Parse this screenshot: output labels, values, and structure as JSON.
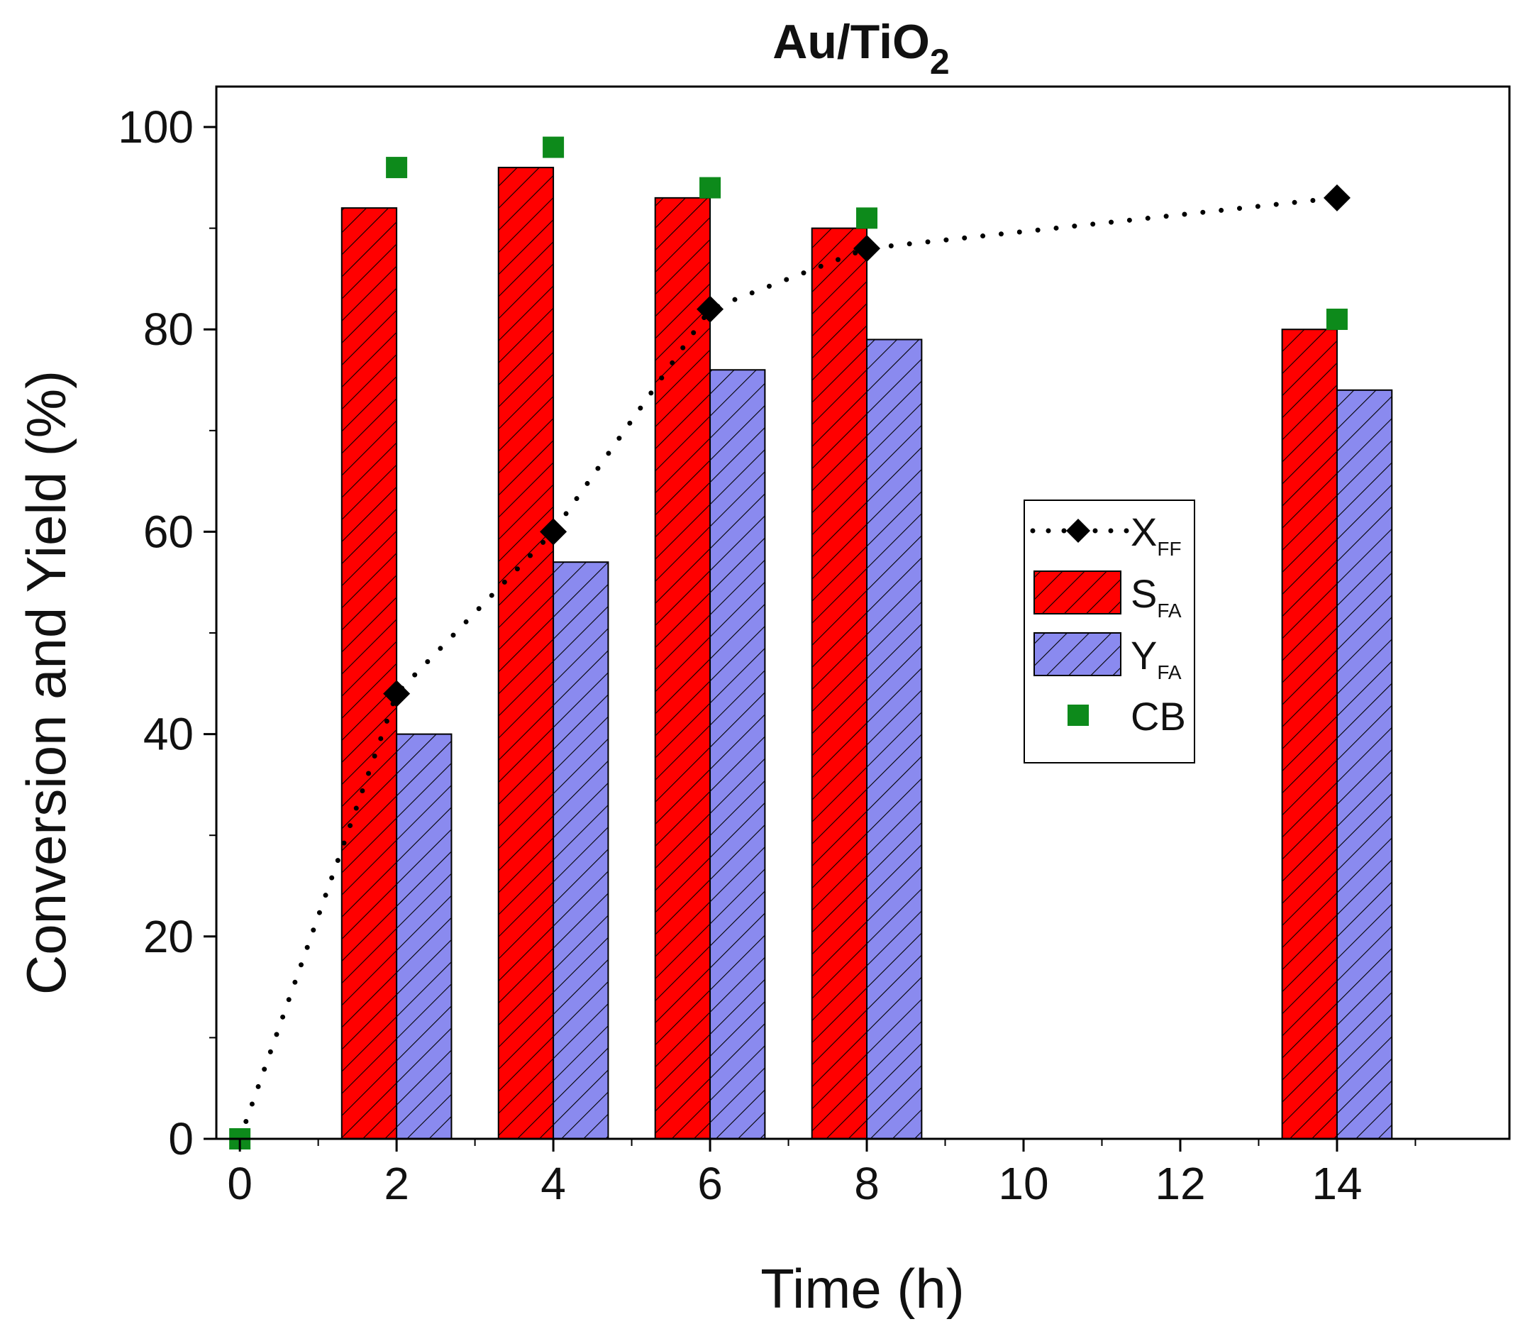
{
  "chart_data": {
    "type": "bar",
    "title": "Au/TiO",
    "title_subscript": "2",
    "xlabel": "Time (h)",
    "ylabel": "Conversion and Yield (%)",
    "xlim": [
      -0.3,
      16.2
    ],
    "ylim": [
      0,
      104
    ],
    "x_ticks": [
      0,
      2,
      4,
      6,
      8,
      10,
      12,
      14
    ],
    "y_ticks": [
      0,
      20,
      40,
      60,
      80,
      100
    ],
    "grid": false,
    "legend_position": "center-right",
    "series": [
      {
        "name": "X",
        "subscript": "FF",
        "kind": "line",
        "style": "dotted",
        "marker": "diamond",
        "color": "#000000",
        "x": [
          0,
          2,
          4,
          6,
          8,
          14
        ],
        "values": [
          0,
          44,
          60,
          82,
          88,
          93
        ]
      },
      {
        "name": "S",
        "subscript": "FA",
        "kind": "bar",
        "color": "#ff0000",
        "hatch": "diagonal",
        "x": [
          2,
          4,
          6,
          8,
          14
        ],
        "values": [
          92,
          96,
          93,
          90,
          80
        ]
      },
      {
        "name": "Y",
        "subscript": "FA",
        "kind": "bar",
        "color": "#8a8aef",
        "hatch": "diagonal",
        "x": [
          2,
          4,
          6,
          8,
          14
        ],
        "values": [
          40,
          57,
          76,
          79,
          74
        ]
      },
      {
        "name": "CB",
        "subscript": "",
        "kind": "scatter",
        "marker": "square",
        "color": "#0d8a1b",
        "x": [
          0,
          2,
          4,
          6,
          8,
          14
        ],
        "values": [
          0,
          96,
          98,
          94,
          91,
          81
        ]
      }
    ]
  }
}
